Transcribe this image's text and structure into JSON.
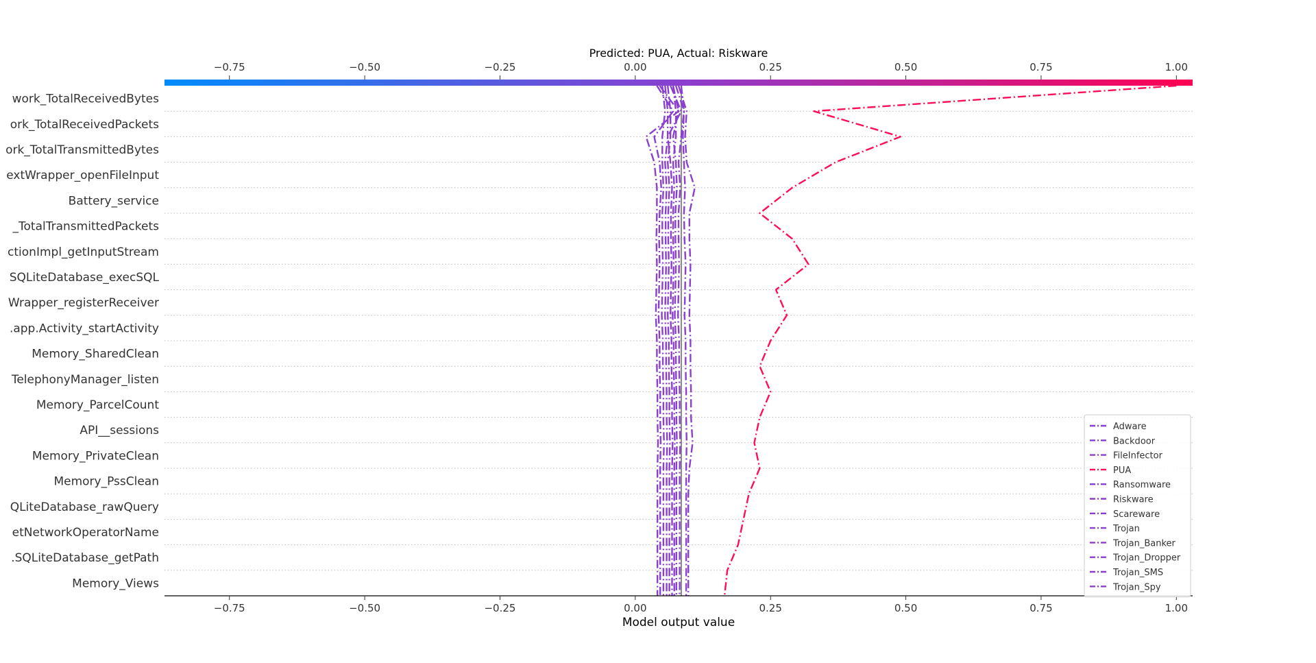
{
  "chart_data": {
    "type": "line",
    "title": "Predicted: PUA, Actual: Riskware",
    "xlabel": "Model output value",
    "ylabel": "",
    "xlim": [
      -0.87,
      1.03
    ],
    "base_value": 0.085,
    "x_ticks": [
      -0.75,
      -0.5,
      -0.25,
      0.0,
      0.25,
      0.5,
      0.75,
      1.0
    ],
    "x_tick_labels": [
      "−0.75",
      "−0.50",
      "−0.25",
      "0.00",
      "0.25",
      "0.50",
      "0.75",
      "1.00"
    ],
    "colorbar": {
      "from_color": "#008bfb",
      "mid_color": "#8a3fcf",
      "to_color": "#ff0052"
    },
    "grid": "horizontal-dotted",
    "legend_position": "lower-right",
    "features": [
      "Network_TotalReceivedBytes",
      "Network_TotalReceivedPackets",
      "Network_TotalTransmittedBytes",
      "ContextWrapper_openFileInput",
      "Battery_service",
      "Network_TotalTransmittedPackets",
      "HttpURLConnectionImpl_getInputStream",
      "SQLiteDatabase_execSQL",
      "ContextWrapper_registerReceiver",
      "android.app.Activity_startActivity",
      "Memory_SharedClean",
      "TelephonyManager_listen",
      "Memory_ParcelCount",
      "API__sessions",
      "Memory_PrivateClean",
      "Memory_PssClean",
      "SQLiteDatabase_rawQuery",
      "TelephonyManager_getNetworkOperatorName",
      "SQLiteDatabase_getPath",
      "Memory_Views"
    ],
    "feature_labels_visible": [
      "work_TotalReceivedBytes",
      "ork_TotalReceivedPackets",
      "ork_TotalTransmittedBytes",
      "extWrapper_openFileInput",
      "Battery_service",
      "_TotalTransmittedPackets",
      "ctionImpl_getInputStream",
      "SQLiteDatabase_execSQL",
      "Wrapper_registerReceiver",
      ".app.Activity_startActivity",
      "Memory_SharedClean",
      "TelephonyManager_listen",
      "Memory_ParcelCount",
      "API__sessions",
      "Memory_PrivateClean",
      "Memory_PssClean",
      "QLiteDatabase_rawQuery",
      "etNetworkOperatorName",
      ".SQLiteDatabase_getPath",
      "Memory_Views"
    ],
    "series": [
      {
        "name": "Adware",
        "color": "#8a3fcf",
        "values": [
          0.055,
          0.06,
          0.06,
          0.055,
          0.058,
          0.056,
          0.056,
          0.057,
          0.056,
          0.055,
          0.057,
          0.057,
          0.058,
          0.058,
          0.059,
          0.058,
          0.058,
          0.058,
          0.058,
          0.058,
          0.058
        ]
      },
      {
        "name": "Backdoor",
        "color": "#8a3fcf",
        "values": [
          0.06,
          0.065,
          0.065,
          0.06,
          0.063,
          0.061,
          0.061,
          0.062,
          0.061,
          0.06,
          0.062,
          0.062,
          0.063,
          0.063,
          0.064,
          0.063,
          0.063,
          0.063,
          0.063,
          0.063,
          0.063
        ]
      },
      {
        "name": "FileInfector",
        "color": "#8a3fcf",
        "values": [
          0.07,
          0.075,
          0.075,
          0.07,
          0.072,
          0.07,
          0.07,
          0.071,
          0.07,
          0.069,
          0.071,
          0.071,
          0.072,
          0.072,
          0.073,
          0.072,
          0.072,
          0.072,
          0.072,
          0.072,
          0.072
        ]
      },
      {
        "name": "PUA",
        "color": "#ff0d57",
        "values": [
          1.0,
          0.33,
          0.49,
          0.37,
          0.29,
          0.23,
          0.29,
          0.32,
          0.26,
          0.28,
          0.25,
          0.23,
          0.25,
          0.23,
          0.22,
          0.23,
          0.21,
          0.2,
          0.19,
          0.17,
          0.165
        ]
      },
      {
        "name": "Ransomware",
        "color": "#8a3fcf",
        "values": [
          0.04,
          0.07,
          0.035,
          0.045,
          0.048,
          0.045,
          0.044,
          0.045,
          0.044,
          0.043,
          0.045,
          0.045,
          0.046,
          0.046,
          0.047,
          0.046,
          0.046,
          0.046,
          0.046,
          0.046,
          0.046
        ]
      },
      {
        "name": "Riskware",
        "color": "#8a3fcf",
        "values": [
          0.08,
          0.095,
          0.092,
          0.095,
          0.11,
          0.1,
          0.1,
          0.102,
          0.101,
          0.1,
          0.102,
          0.102,
          0.103,
          0.103,
          0.106,
          0.1,
          0.098,
          0.098,
          0.098,
          0.098,
          0.098
        ]
      },
      {
        "name": "Scareware",
        "color": "#8a3fcf",
        "values": [
          0.045,
          0.08,
          0.02,
          0.035,
          0.04,
          0.04,
          0.039,
          0.04,
          0.039,
          0.038,
          0.04,
          0.04,
          0.041,
          0.041,
          0.042,
          0.041,
          0.041,
          0.041,
          0.041,
          0.041,
          0.041
        ]
      },
      {
        "name": "Trojan",
        "color": "#8a3fcf",
        "values": [
          0.065,
          0.085,
          0.06,
          0.065,
          0.068,
          0.066,
          0.066,
          0.067,
          0.066,
          0.065,
          0.067,
          0.067,
          0.068,
          0.068,
          0.069,
          0.068,
          0.068,
          0.068,
          0.068,
          0.068,
          0.068
        ]
      },
      {
        "name": "Trojan_Banker",
        "color": "#8a3fcf",
        "values": [
          0.05,
          0.055,
          0.05,
          0.05,
          0.052,
          0.05,
          0.05,
          0.051,
          0.05,
          0.049,
          0.051,
          0.051,
          0.052,
          0.052,
          0.053,
          0.052,
          0.052,
          0.052,
          0.052,
          0.052,
          0.052
        ]
      },
      {
        "name": "Trojan_Dropper",
        "color": "#8a3fcf",
        "values": [
          0.075,
          0.09,
          0.085,
          0.08,
          0.083,
          0.08,
          0.08,
          0.081,
          0.08,
          0.079,
          0.081,
          0.081,
          0.082,
          0.082,
          0.083,
          0.082,
          0.082,
          0.082,
          0.082,
          0.082,
          0.082
        ]
      },
      {
        "name": "Trojan_SMS",
        "color": "#8a3fcf",
        "values": [
          0.085,
          0.09,
          0.088,
          0.09,
          0.092,
          0.09,
          0.091,
          0.093,
          0.092,
          0.091,
          0.093,
          0.093,
          0.094,
          0.094,
          0.095,
          0.094,
          0.094,
          0.094,
          0.094,
          0.094,
          0.094
        ]
      },
      {
        "name": "Trojan_Spy",
        "color": "#8a3fcf",
        "values": [
          0.07,
          0.08,
          0.07,
          0.075,
          0.077,
          0.074,
          0.074,
          0.075,
          0.074,
          0.073,
          0.075,
          0.075,
          0.076,
          0.076,
          0.077,
          0.076,
          0.076,
          0.076,
          0.076,
          0.076,
          0.076
        ]
      }
    ]
  }
}
